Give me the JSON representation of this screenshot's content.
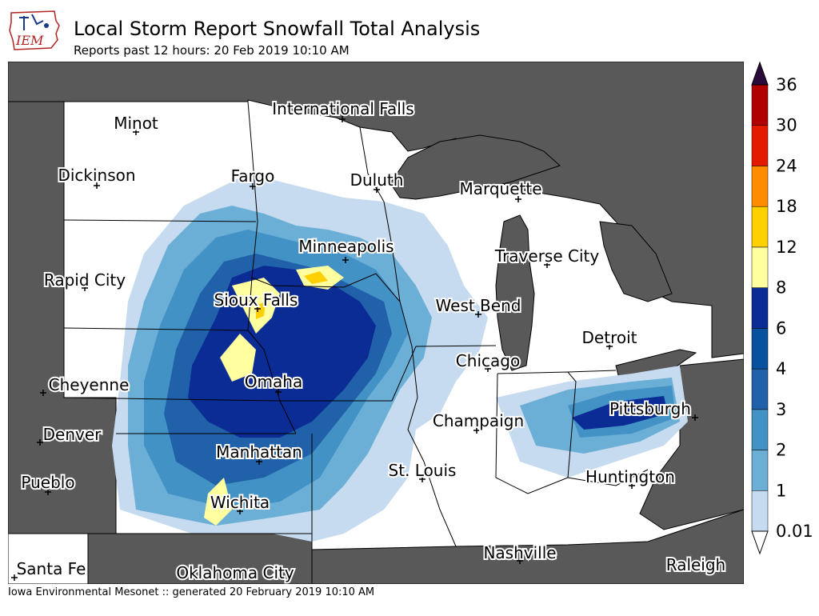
{
  "header": {
    "logo_text": "IEM",
    "title": "Local Storm Report Snowfall Total Analysis",
    "subtitle": "Reports past 12 hours: 20 Feb 2019 10:10 AM"
  },
  "footer": {
    "text": "Iowa Environmental Mesonet :: generated 20 February 2019 10:10 AM"
  },
  "colors": {
    "outside": "#595959",
    "land": "#ffffff",
    "border": "#000000",
    "levels": [
      "#c6dbef",
      "#6baed6",
      "#4292c6",
      "#2161a9",
      "#08519c",
      "#0a2c94",
      "#ffffa0",
      "#ffd000",
      "#ff8c00",
      "#e31a00",
      "#b00000",
      "#8b0000",
      "#5a0000"
    ]
  },
  "cities": [
    {
      "name": "International Falls"
    },
    {
      "name": "Minot"
    },
    {
      "name": "Dickinson"
    },
    {
      "name": "Fargo"
    },
    {
      "name": "Duluth"
    },
    {
      "name": "Marquette"
    },
    {
      "name": "Minneapolis"
    },
    {
      "name": "Traverse City"
    },
    {
      "name": "Rapid City"
    },
    {
      "name": "Sioux Falls"
    },
    {
      "name": "West Bend"
    },
    {
      "name": "Detroit"
    },
    {
      "name": "Chicago"
    },
    {
      "name": "Cheyenne"
    },
    {
      "name": "Omaha"
    },
    {
      "name": "Pittsburgh"
    },
    {
      "name": "Champaign"
    },
    {
      "name": "Denver"
    },
    {
      "name": "Manhattan"
    },
    {
      "name": "St. Louis"
    },
    {
      "name": "Huntington"
    },
    {
      "name": "Pueblo"
    },
    {
      "name": "Wichita"
    },
    {
      "name": "Nashville"
    },
    {
      "name": "Santa Fe"
    },
    {
      "name": "Oklahoma City"
    },
    {
      "name": "Raleigh"
    }
  ],
  "colorbar": {
    "labels": [
      "0.01",
      "1",
      "2",
      "3",
      "4",
      "6",
      "8",
      "12",
      "18",
      "24",
      "30",
      "36"
    ]
  }
}
